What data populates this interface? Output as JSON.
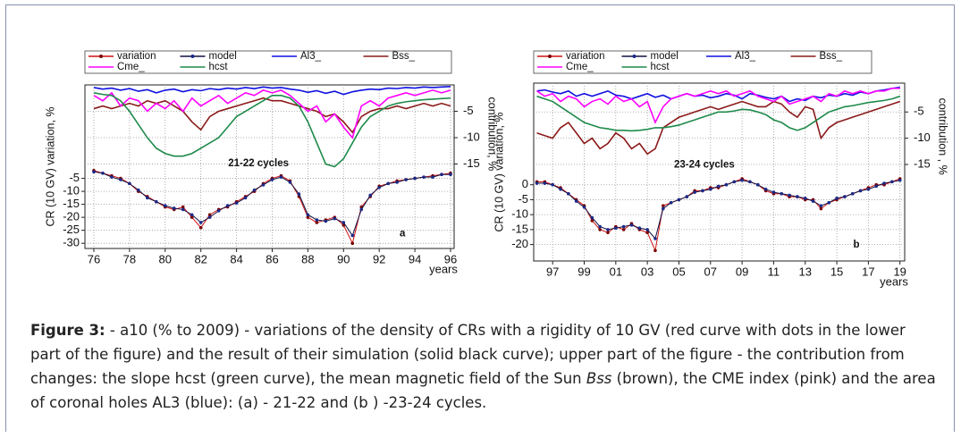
{
  "chart_data": [
    {
      "type": "line",
      "xlabel": "years",
      "ylabel": "CR (10 GV) variation, %",
      "y2label": "contribution, %",
      "annotations": [
        "21-22 cycles",
        "a"
      ],
      "grid": true,
      "x": [
        76,
        76.5,
        77,
        77.5,
        78,
        78.5,
        79,
        79.5,
        80,
        80.5,
        81,
        81.5,
        82,
        82.5,
        83,
        83.5,
        84,
        84.5,
        85,
        85.5,
        86,
        86.5,
        87,
        87.5,
        88,
        88.5,
        89,
        89.5,
        90,
        90.5,
        91,
        91.5,
        92,
        92.5,
        93,
        93.5,
        94,
        94.5,
        95,
        95.5,
        96
      ],
      "xlim": [
        75.5,
        96.2
      ],
      "xticks": [
        76,
        78,
        80,
        82,
        84,
        86,
        88,
        90,
        92,
        94,
        96
      ],
      "ylim": [
        -32,
        31
      ],
      "yticks": [
        -5,
        -10,
        -15,
        -20,
        -25,
        -30
      ],
      "y2lim": [
        -31,
        0
      ],
      "y2ticks": [
        -5,
        -10,
        -15
      ],
      "series": [
        {
          "name": "variation",
          "color": "#d01010",
          "marker": "#7a0000",
          "values": [
            -2,
            -3,
            -4,
            -5,
            -7,
            -10,
            -12,
            -14,
            -16,
            -17,
            -16,
            -20,
            -24,
            -19,
            -17,
            -16,
            -14,
            -12,
            -10,
            -7,
            -5,
            -4,
            -6,
            -12,
            -20,
            -22,
            -21,
            -20,
            -23,
            -30,
            -16,
            -12,
            -8,
            -7,
            -6,
            -5.5,
            -5,
            -4.5,
            -4,
            -3.5,
            -3
          ]
        },
        {
          "name": "model",
          "color": "#101040",
          "marker": "#1a2a8a",
          "values": [
            -2.5,
            -3,
            -4.5,
            -5.5,
            -7,
            -9.5,
            -12.5,
            -14,
            -15.5,
            -16.5,
            -17,
            -19,
            -22,
            -20,
            -17.5,
            -15.5,
            -14.5,
            -12.5,
            -9.5,
            -7.5,
            -5.5,
            -4.5,
            -6.5,
            -11,
            -19,
            -21,
            -21.5,
            -20.5,
            -22,
            -27,
            -17,
            -11.5,
            -8.5,
            -7,
            -6.5,
            -5.5,
            -5,
            -4.5,
            -4.5,
            -3.5,
            -3.5
          ]
        },
        {
          "name": "Al3_",
          "color": "#1010e0",
          "axis": "y2",
          "values": [
            -0.5,
            -0.8,
            -0.6,
            -1,
            -0.7,
            -1.2,
            -0.9,
            -1.5,
            -1,
            -0.8,
            -1.3,
            -0.9,
            -1.1,
            -0.7,
            -0.9,
            -0.6,
            -0.8,
            -0.5,
            -0.7,
            -0.4,
            -0.6,
            -0.5,
            -0.8,
            -1,
            -1.4,
            -1.1,
            -1.6,
            -1.2,
            -1.8,
            -1.3,
            -1,
            -0.8,
            -0.9,
            -0.6,
            -0.7,
            -0.5,
            -0.6,
            -0.4,
            -0.5,
            -0.4,
            -0.3
          ]
        },
        {
          "name": "Bss_",
          "color": "#8b1a1a",
          "axis": "y2",
          "values": [
            -4.5,
            -4,
            -4.5,
            -4,
            -3.5,
            -4,
            -3,
            -3.5,
            -3,
            -4,
            -5,
            -7,
            -8.5,
            -6,
            -5,
            -4.5,
            -4,
            -3.5,
            -3,
            -2.5,
            -3,
            -3,
            -3.5,
            -4,
            -4.5,
            -5,
            -6,
            -5.5,
            -7,
            -9,
            -6,
            -5,
            -4.5,
            -4.5,
            -4,
            -4.5,
            -4,
            -3.5,
            -4,
            -3.5,
            -4
          ]
        },
        {
          "name": "Cme_",
          "color": "#ff00ff",
          "axis": "y2",
          "values": [
            -2,
            -3,
            -1.5,
            -4,
            -2.5,
            -3,
            -5,
            -3.5,
            -4.5,
            -3,
            -5,
            -2.5,
            -4,
            -3,
            -2,
            -3.5,
            -2.5,
            -1.5,
            -2,
            -1,
            -1.5,
            -1,
            -2,
            -3.5,
            -5,
            -4,
            -7,
            -5.5,
            -8,
            -10,
            -4,
            -3,
            -4,
            -2.5,
            -2,
            -1.5,
            -2,
            -1.5,
            -1,
            -1.5,
            -1
          ]
        },
        {
          "name": "hcst",
          "color": "#1e8a4a",
          "axis": "y2",
          "values": [
            -1.5,
            -1.8,
            -2,
            -3,
            -5,
            -7.5,
            -10,
            -12,
            -13,
            -13.5,
            -13.5,
            -13,
            -12,
            -11,
            -10,
            -8,
            -6,
            -5,
            -4,
            -3,
            -2,
            -2,
            -2.5,
            -4,
            -7,
            -11,
            -15,
            -15.5,
            -14,
            -11,
            -8,
            -6,
            -5,
            -4,
            -3.5,
            -3.2,
            -3,
            -2.8,
            -2.7,
            -2.6,
            -2.5
          ]
        }
      ]
    },
    {
      "type": "line",
      "xlabel": "years",
      "ylabel": "CR (10 GV) variation, %",
      "y2label": "contribution , %",
      "annotations": [
        "23-24 cycles",
        "b"
      ],
      "grid": true,
      "x": [
        1996,
        1996.5,
        1997,
        1997.5,
        1998,
        1998.5,
        1999,
        1999.5,
        2000,
        2000.5,
        2001,
        2001.5,
        2002,
        2002.5,
        2003,
        2003.5,
        2004,
        2004.5,
        2005,
        2005.5,
        2006,
        2006.5,
        2007,
        2007.5,
        2008,
        2008.5,
        2009,
        2009.5,
        2010,
        2010.5,
        2011,
        2011.5,
        2012,
        2012.5,
        2013,
        2013.5,
        2014,
        2014.5,
        2015,
        2015.5,
        2016,
        2016.5,
        2017,
        2017.5,
        2018,
        2018.5,
        2019
      ],
      "xlim": [
        1995.8,
        2019.3
      ],
      "xticks": [
        {
          "value": 1997,
          "label": "97"
        },
        {
          "value": 1999,
          "label": "99"
        },
        {
          "value": 2001,
          "label": "01"
        },
        {
          "value": 2003,
          "label": "03"
        },
        {
          "value": 2005,
          "label": "05"
        },
        {
          "value": 2007,
          "label": "07"
        },
        {
          "value": 2009,
          "label": "09"
        },
        {
          "value": 2011,
          "label": "11"
        },
        {
          "value": 2013,
          "label": "13"
        },
        {
          "value": 2015,
          "label": "15"
        },
        {
          "value": 2017,
          "label": "17"
        },
        {
          "value": 2019,
          "label": "19"
        }
      ],
      "ylim": [
        -25.5,
        34
      ],
      "yticks": [
        0,
        -5,
        -10,
        -15,
        -20
      ],
      "y2lim": [
        -33.4,
        0.5
      ],
      "y2ticks": [
        -5,
        -10,
        -15
      ],
      "series": [
        {
          "name": "variation",
          "color": "#d01010",
          "marker": "#7a0000",
          "values": [
            1,
            1,
            0,
            -1,
            -3,
            -5,
            -7,
            -12,
            -15,
            -16,
            -14,
            -15,
            -13,
            -15,
            -16,
            -22,
            -7,
            -6,
            -5,
            -4,
            -2,
            -2,
            -1,
            -1,
            0,
            1,
            2,
            1,
            0,
            -2,
            -3,
            -3,
            -4,
            -4,
            -5,
            -5,
            -8,
            -6,
            -5,
            -4,
            -3,
            -2,
            -1,
            0,
            0,
            1,
            2
          ]
        },
        {
          "name": "model",
          "color": "#101040",
          "marker": "#1a2a8a",
          "values": [
            0.5,
            0.5,
            0,
            -1.5,
            -3,
            -5.5,
            -7.5,
            -11,
            -14,
            -15,
            -14.5,
            -14,
            -13.5,
            -14.5,
            -15,
            -18,
            -8,
            -6,
            -5,
            -4,
            -2.5,
            -2,
            -1.5,
            -0.5,
            0,
            1,
            1.5,
            1,
            0,
            -1.5,
            -2.5,
            -3,
            -3.5,
            -4,
            -4.5,
            -5.5,
            -7,
            -6,
            -4.5,
            -4,
            -3,
            -2,
            -1.5,
            -0.5,
            0.5,
            1,
            1.5
          ]
        },
        {
          "name": "Al3_",
          "color": "#1010e0",
          "axis": "y2",
          "values": [
            -1,
            -0.8,
            -1.2,
            -1.5,
            -1,
            -2,
            -1.5,
            -2,
            -1.5,
            -1,
            -1.8,
            -2,
            -2.5,
            -2,
            -1.5,
            -2.2,
            -1.8,
            -2.5,
            -2,
            -1.5,
            -2,
            -1.8,
            -2.3,
            -2,
            -1.5,
            -1.8,
            -2.5,
            -1.5,
            -1.8,
            -2.2,
            -2.5,
            -2,
            -3,
            -2.5,
            -2.8,
            -2,
            -2.3,
            -1.8,
            -2,
            -1.5,
            -1.8,
            -1.2,
            -1.5,
            -1,
            -0.8,
            -0.5,
            -0.3
          ]
        },
        {
          "name": "Bss_",
          "color": "#8b1a1a",
          "axis": "y2",
          "values": [
            -9,
            -9.5,
            -10,
            -8,
            -7,
            -9,
            -11,
            -10,
            -12,
            -11,
            -9,
            -10,
            -12,
            -11,
            -13,
            -12,
            -8,
            -7,
            -6,
            -5.5,
            -5,
            -4.5,
            -4,
            -4.5,
            -4,
            -3.5,
            -3,
            -3.5,
            -4,
            -4,
            -3,
            -3.5,
            -5,
            -6,
            -4,
            -4.5,
            -10,
            -8,
            -7,
            -6.5,
            -6,
            -5.5,
            -5,
            -4.5,
            -4,
            -3.5,
            -3
          ]
        },
        {
          "name": "Cme_",
          "color": "#ff00ff",
          "axis": "y2",
          "values": [
            -1,
            -2,
            -1.5,
            -3,
            -2,
            -2.5,
            -4,
            -3,
            -2.5,
            -3.5,
            -2,
            -3,
            -2.5,
            -4,
            -3,
            -7,
            -4,
            -2.5,
            -2,
            -1.5,
            -2,
            -1.5,
            -1,
            -1.5,
            -1,
            -2,
            -1.5,
            -1,
            -2,
            -2.5,
            -3,
            -2,
            -3.5,
            -3,
            -2.5,
            -2,
            -3,
            -1.5,
            -2,
            -1,
            -1.5,
            -1,
            -1.5,
            -1,
            -1,
            -0.5,
            -0.5
          ]
        },
        {
          "name": "hcst",
          "color": "#1e8a4a",
          "axis": "y2",
          "values": [
            -2,
            -2.5,
            -3,
            -4,
            -5,
            -6,
            -7,
            -7.5,
            -8,
            -8.2,
            -8.5,
            -8.5,
            -8.6,
            -8.5,
            -8.3,
            -8,
            -8,
            -7.8,
            -7.5,
            -7,
            -6.5,
            -6,
            -5.5,
            -5,
            -5,
            -4.8,
            -4.5,
            -4.6,
            -5,
            -5.5,
            -6.5,
            -7,
            -8,
            -8.5,
            -8,
            -7,
            -6,
            -5,
            -4.5,
            -4,
            -3.8,
            -3.5,
            -3.2,
            -3,
            -2.8,
            -2.5,
            -2
          ]
        }
      ]
    }
  ],
  "caption": {
    "label": "Figure 3:",
    "text1": " - a10 (% to 2009) - variations of the density of CRs with a rigidity of 10 GV (red curve with dots in the lower part of the figure) and the result of their simulation (solid black curve); upper part of the figure - the contribution from changes: the slope hcst (green curve), the mean magnetic field of the Sun ",
    "emph": "Bss",
    "text2": " (brown), the CME index (pink) and the area of coronal holes AL3 (blue): (a) - 21-22 and (b ) -23-24 cycles."
  }
}
